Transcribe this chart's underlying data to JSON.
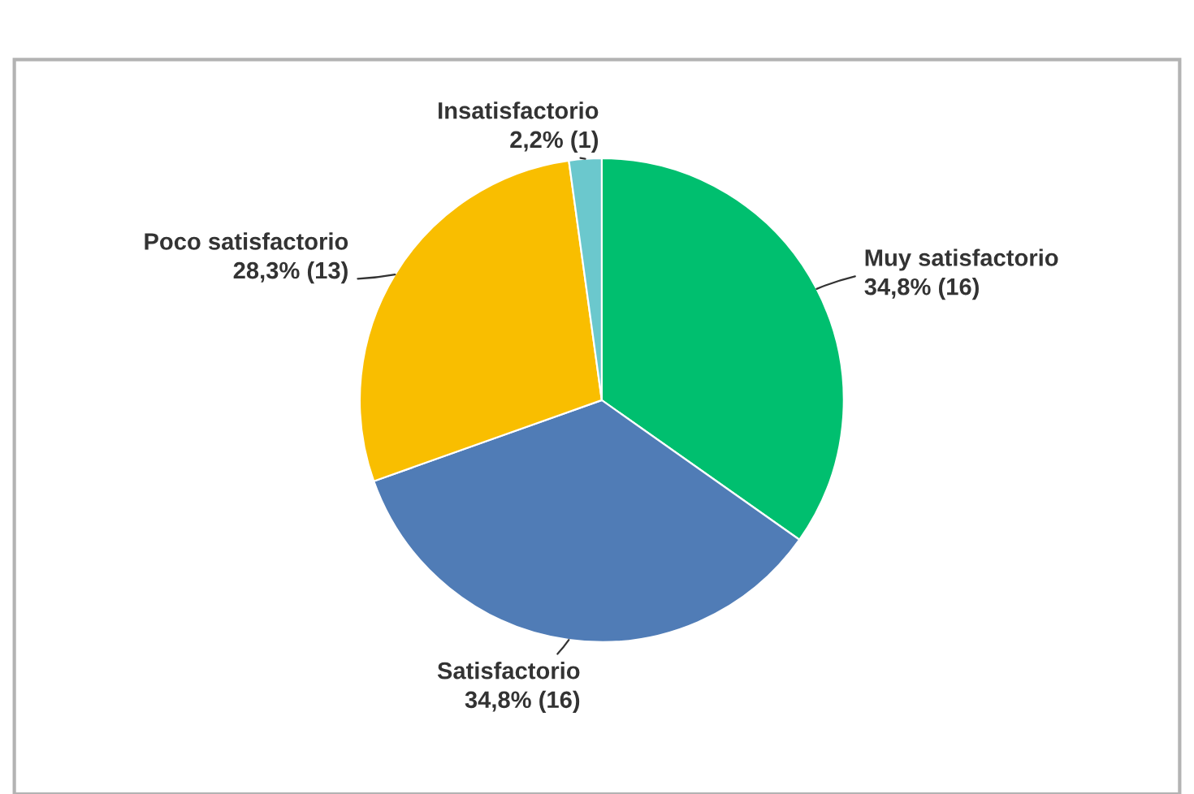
{
  "chart_data": {
    "type": "pie",
    "categories": [
      "Muy satisfactorio",
      "Satisfactorio",
      "Poco satisfactorio",
      "Insatisfactorio"
    ],
    "values": [
      16,
      16,
      13,
      1
    ],
    "value_labels": [
      "34,8% (16)",
      "34,8% (16)",
      "28,3% (13)",
      "2,2% (1)"
    ],
    "colors": [
      "#00bf6f",
      "#507cb6",
      "#f9be00",
      "#6bc8cd"
    ],
    "legend": false
  }
}
